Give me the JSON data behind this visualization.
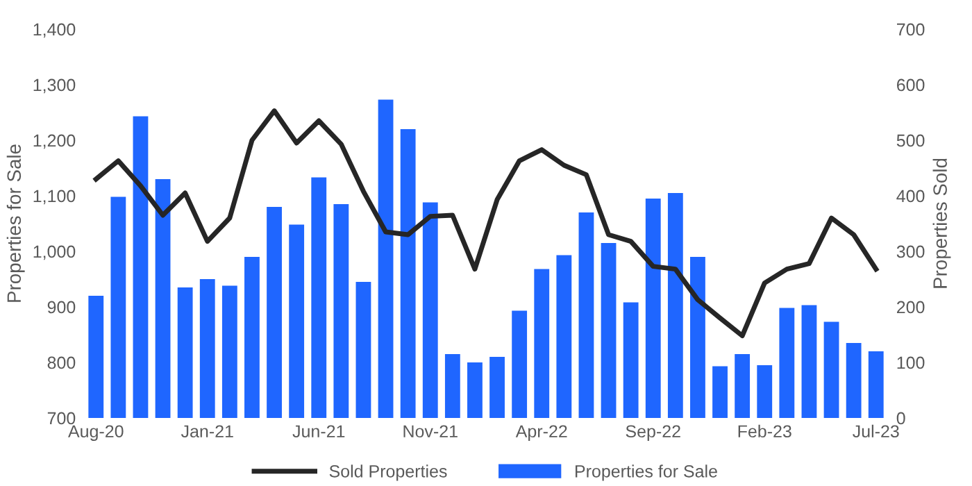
{
  "chart_data": {
    "type": "bar",
    "ylabel": "Properties for Sale",
    "y2label": "Properties Sold",
    "categories": [
      "Aug-20",
      null,
      null,
      null,
      null,
      "Jan-21",
      null,
      null,
      null,
      null,
      "Jun-21",
      null,
      null,
      null,
      null,
      "Nov-21",
      null,
      null,
      null,
      null,
      "Apr-22",
      null,
      null,
      null,
      null,
      "Sep-22",
      null,
      null,
      null,
      null,
      "Feb-23",
      null,
      null,
      null,
      null,
      "Jul-23"
    ],
    "series": [
      {
        "name": "Properties for Sale",
        "color": "#1f66ff",
        "values": [
          920,
          1098,
          1243,
          1130,
          935,
          950,
          938,
          990,
          1080,
          1048,
          1133,
          1085,
          945,
          1273,
          1220,
          1088,
          815,
          800,
          810,
          893,
          968,
          993,
          1070,
          1015,
          908,
          1095,
          1105,
          990,
          793,
          815,
          795,
          898,
          903,
          873,
          835,
          820
        ]
      },
      {
        "name": "Sold Properties",
        "type": "line",
        "axis": "y2",
        "color": "#262626",
        "values": [
          430,
          463,
          418,
          365,
          405,
          318,
          360,
          500,
          553,
          495,
          535,
          493,
          408,
          335,
          330,
          363,
          365,
          268,
          393,
          463,
          483,
          455,
          438,
          330,
          318,
          273,
          268,
          213,
          180,
          148,
          243,
          268,
          278,
          360,
          330,
          268
        ]
      }
    ],
    "ylim": [
      700,
      1400
    ],
    "yticks": [
      {
        "value": 700,
        "label": "700"
      },
      {
        "value": 800,
        "label": "800"
      },
      {
        "value": 900,
        "label": "900"
      },
      {
        "value": 1000,
        "label": "1,000"
      },
      {
        "value": 1100,
        "label": "1,100"
      },
      {
        "value": 1200,
        "label": "1,200"
      },
      {
        "value": 1300,
        "label": "1,300"
      },
      {
        "value": 1400,
        "label": "1,400"
      }
    ],
    "y2lim": [
      0,
      700
    ],
    "y2ticks": [
      0,
      100,
      200,
      300,
      400,
      500,
      600,
      700
    ],
    "legend": "bottom",
    "grid": false
  }
}
